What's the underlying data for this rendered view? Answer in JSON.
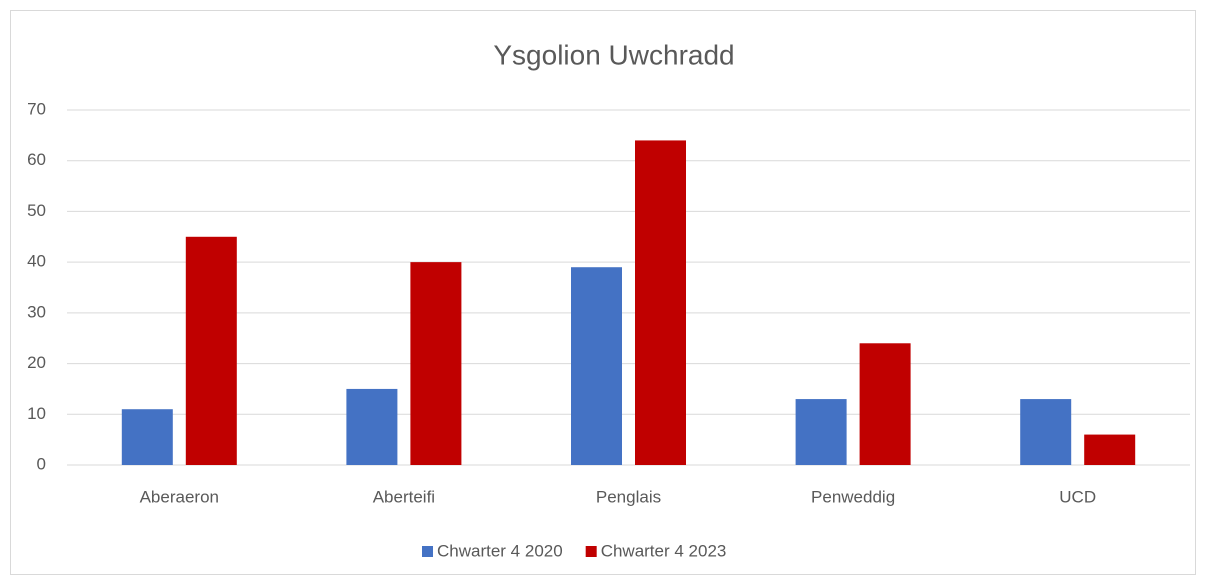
{
  "chart_data": {
    "type": "bar",
    "title": "Ysgolion Uwchradd",
    "categories": [
      "Aberaeron",
      "Aberteifi",
      "Penglais",
      "Penweddig",
      "UCD"
    ],
    "series": [
      {
        "name": "Chwarter 4 2020",
        "color": "#4472c4",
        "values": [
          11,
          15,
          39,
          13,
          13
        ]
      },
      {
        "name": "Chwarter 4 2023",
        "color": "#c00000",
        "values": [
          45,
          40,
          64,
          24,
          6
        ]
      }
    ],
    "ylim": [
      0,
      70
    ],
    "yticks": [
      0,
      10,
      20,
      30,
      40,
      50,
      60,
      70
    ],
    "grid": true,
    "legend": "bottom"
  }
}
